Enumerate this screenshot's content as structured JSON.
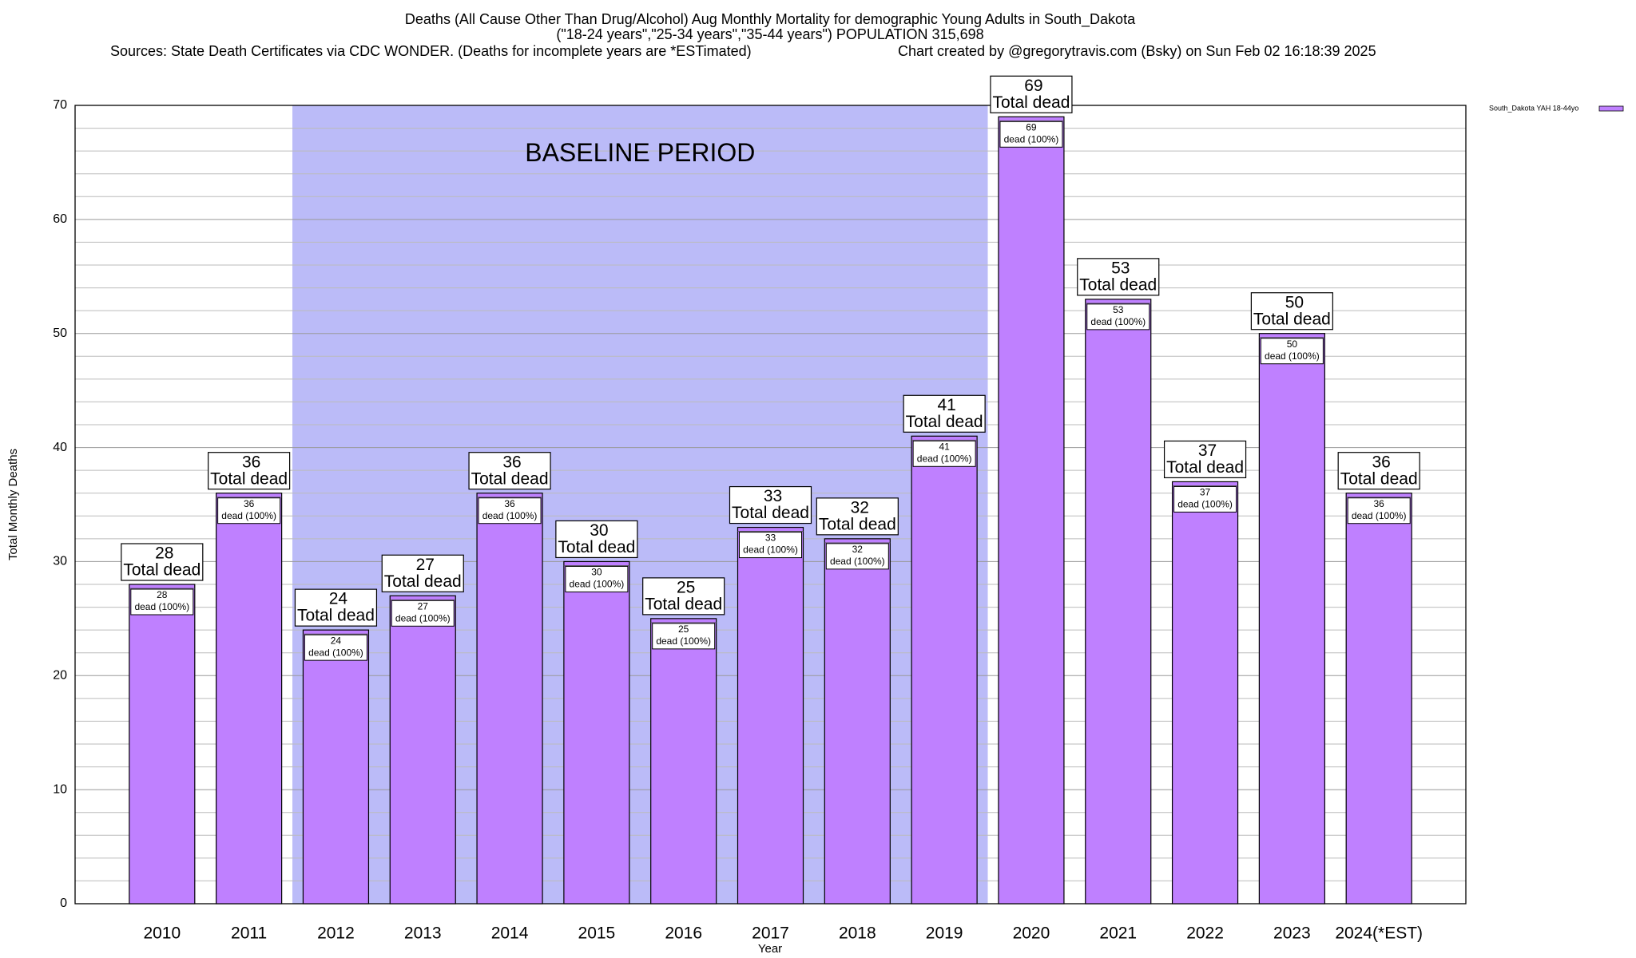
{
  "chart_data": {
    "type": "bar",
    "title": "Deaths (All Cause Other Than Drug/Alcohol) Aug Monthly Mortality for demographic Young Adults in South_Dakota",
    "subtitle": "(\"18-24 years\",\"25-34 years\",\"35-44 years\") POPULATION 315,698",
    "source": "Sources: State Death Certificates via CDC WONDER. (Deaths for incomplete years are *ESTimated)",
    "credit": "Chart created by @gregorytravis.com (Bsky) on Sun Feb 02 16:18:39 2025",
    "x_label": "Year",
    "y_label": "Total Monthly Deaths",
    "categories": [
      "2010",
      "2011",
      "2012",
      "2013",
      "2014",
      "2015",
      "2016",
      "2017",
      "2018",
      "2019",
      "2020",
      "2021",
      "2022",
      "2023",
      "2024(*EST)"
    ],
    "series": [
      {
        "name": "South_Dakota YAH 18-44yo",
        "color": "#bf80ff",
        "values": [
          28,
          36,
          24,
          27,
          36,
          30,
          25,
          33,
          32,
          41,
          69,
          53,
          37,
          50,
          36
        ]
      }
    ],
    "total_label": "Total dead",
    "segment_label": "dead (100%)",
    "baseline": {
      "label": "BASELINE PERIOD",
      "start": "2012",
      "end": "2019",
      "color": "#bbbbf8"
    },
    "ylim": [
      0,
      70
    ],
    "yticks": [
      0,
      10,
      20,
      30,
      40,
      50,
      60,
      70
    ],
    "yticks_minor": [
      2,
      4,
      6,
      8,
      12,
      14,
      16,
      18,
      22,
      24,
      26,
      28,
      32,
      34,
      36,
      38,
      42,
      44,
      46,
      48,
      52,
      54,
      56,
      58,
      62,
      64,
      66,
      68
    ],
    "grid": true,
    "legend": "top-right"
  }
}
